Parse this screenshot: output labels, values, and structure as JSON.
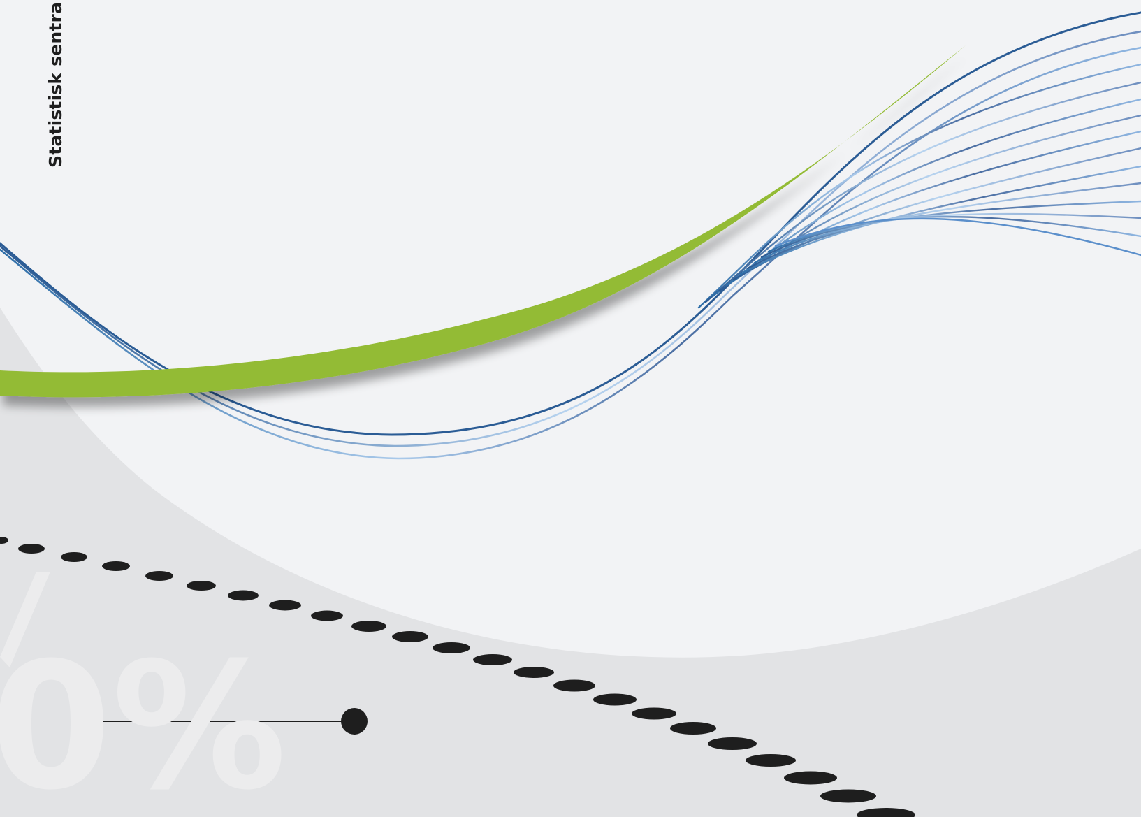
{
  "cover": {
    "publisher_vertical": "Statistisk sentra",
    "background_numeral": "0%"
  },
  "colors": {
    "page_light": "#f2f3f5",
    "page_grey": "#e2e3e5",
    "accent_green": "#93bb34",
    "wave_blue_dark": "#2a5a93",
    "wave_blue_light": "#a8c8ea",
    "dots": "#1e1e1e"
  }
}
